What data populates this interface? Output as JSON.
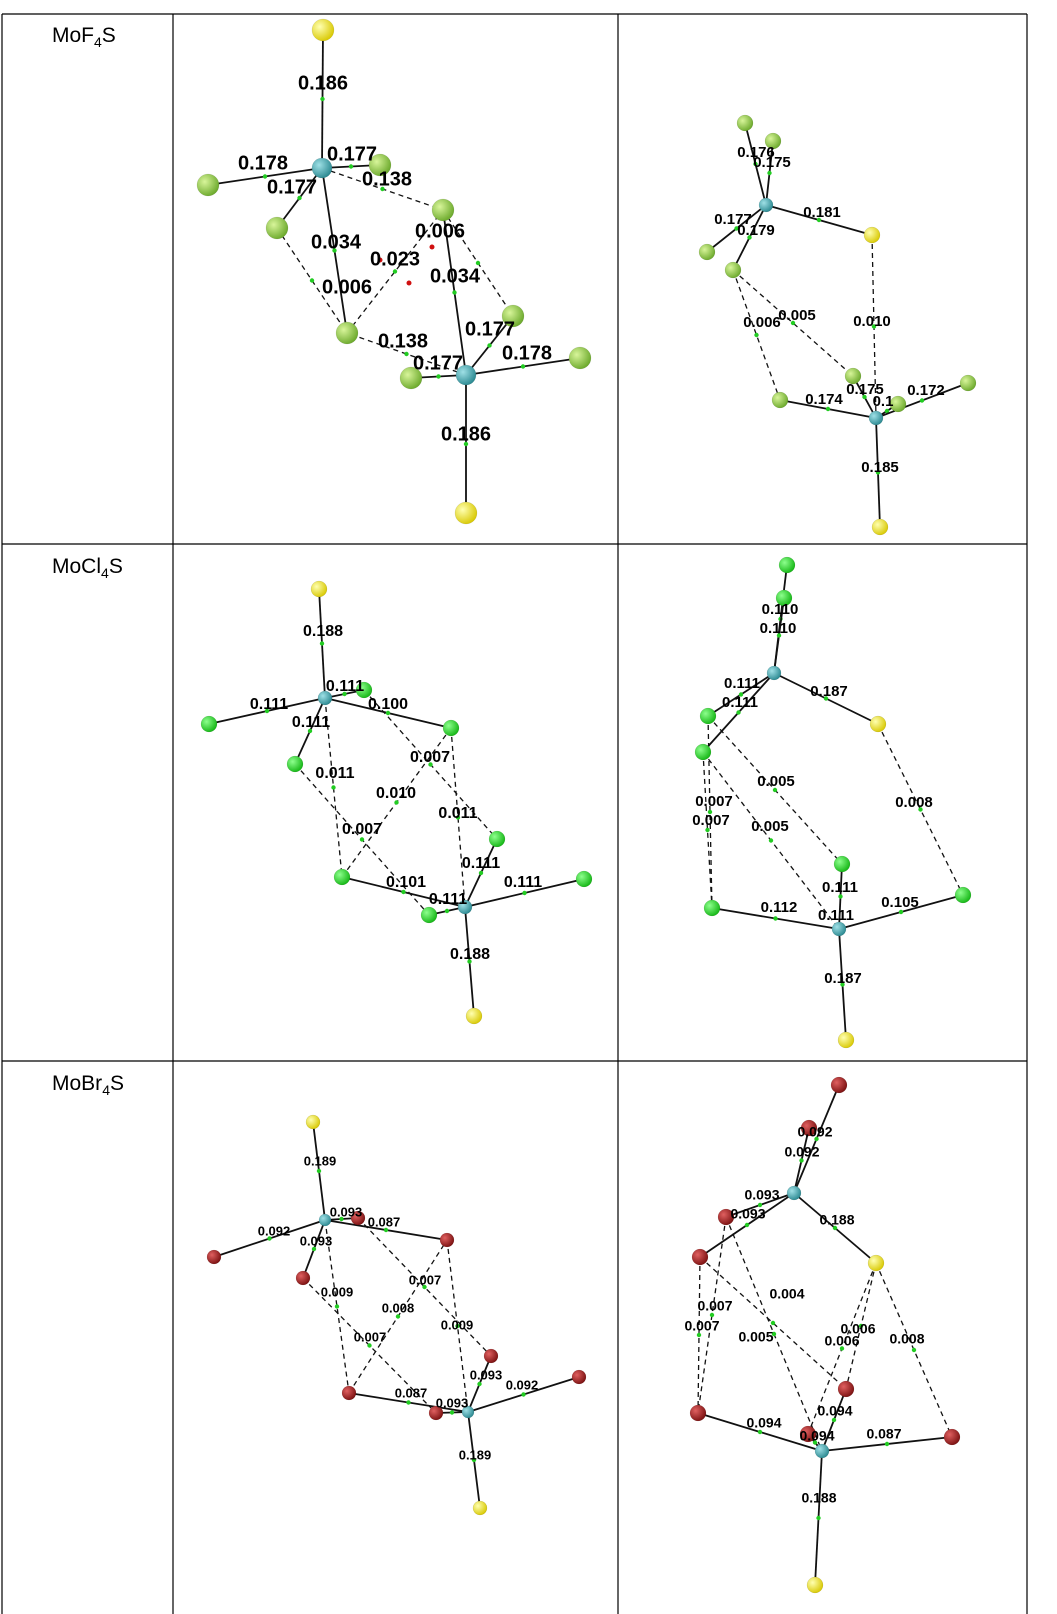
{
  "table": {
    "rows": [
      {
        "formula": [
          "MoF",
          "4",
          "S"
        ],
        "diagrams": [
          {
            "labels": [
              "0.186",
              "0.178",
              "0.177",
              "0.177",
              "0.138",
              "0.006",
              "0.034",
              "0.023",
              "0.034",
              "0.006",
              "0.138",
              "0.177",
              "0.177",
              "0.178",
              "0.186"
            ]
          },
          {
            "labels": [
              "0.176",
              "0.175",
              "0.181",
              "0.177",
              "0.179",
              "0.005",
              "0.006",
              "0.010",
              "0.175",
              "0.1",
              "0.172",
              "0.174",
              "0.185"
            ]
          }
        ]
      },
      {
        "formula": [
          "MoCl",
          "4",
          "S"
        ],
        "diagrams": [
          {
            "labels": [
              "0.188",
              "0.111",
              "0.111",
              "0.100",
              "0.111",
              "0.007",
              "0.011",
              "0.010",
              "0.011",
              "0.007",
              "0.111",
              "0.101",
              "0.111",
              "0.111",
              "0.188"
            ]
          },
          {
            "labels": [
              "0.110",
              "0.110",
              "0.111",
              "0.187",
              "0.111",
              "0.005",
              "0.008",
              "0.007",
              "0.007",
              "0.005",
              "0.111",
              "0.112",
              "0.105",
              "0.111",
              "0.187"
            ]
          }
        ]
      },
      {
        "formula": [
          "MoBr",
          "4",
          "S"
        ],
        "diagrams": [
          {
            "labels": [
              "0.189",
              "0.092",
              "0.093",
              "0.087",
              "0.093",
              "0.007",
              "0.009",
              "0.008",
              "0.009",
              "0.007",
              "0.093",
              "0.092",
              "0.087",
              "0.093",
              "0.189"
            ]
          },
          {
            "labels": [
              "0.092",
              "0.092",
              "0.093",
              "0.093",
              "0.188",
              "0.004",
              "0.007",
              "0.006",
              "0.007",
              "0.005",
              "0.006",
              "0.008",
              "0.094",
              "0.094",
              "0.094",
              "0.087",
              "0.188"
            ]
          }
        ]
      }
    ]
  }
}
